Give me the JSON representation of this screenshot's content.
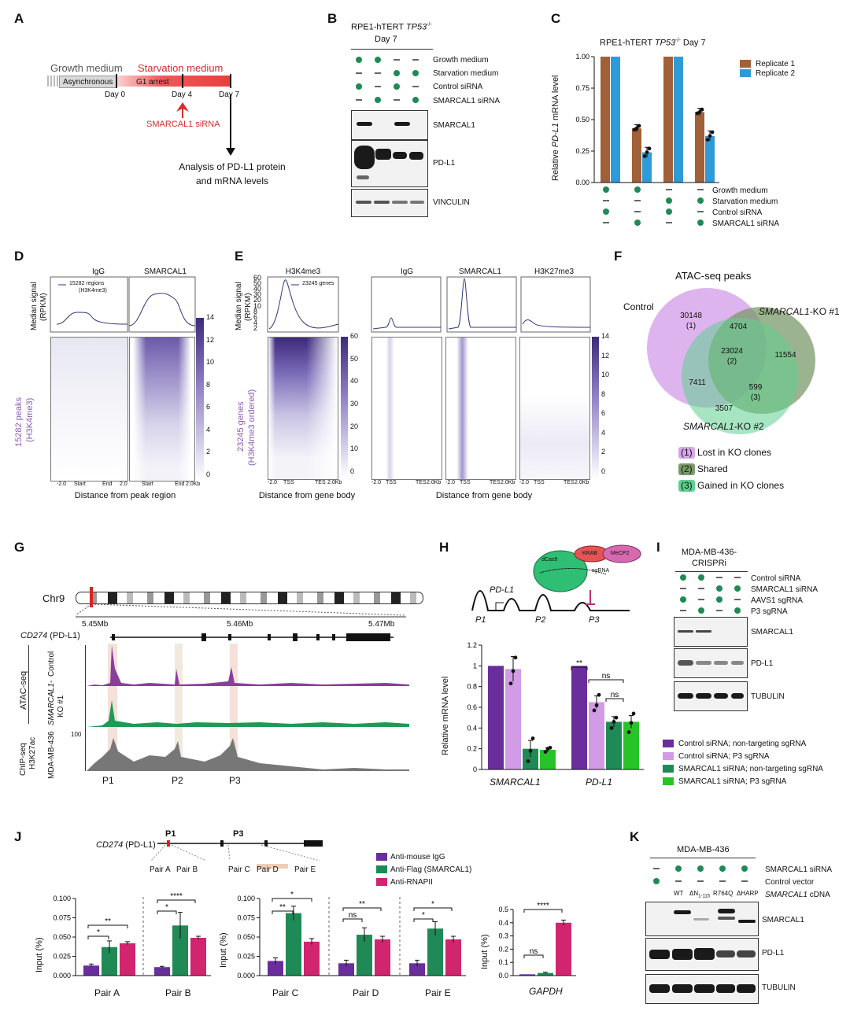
{
  "panels": {
    "A": "A",
    "B": "B",
    "C": "C",
    "D": "D",
    "E": "E",
    "F": "F",
    "G": "G",
    "H": "H",
    "I": "I",
    "J": "J",
    "K": "K"
  },
  "A": {
    "growth_medium": "Growth medium",
    "starvation_medium": "Starvation medium",
    "asynchronous": "Asynchronous",
    "g1_arrest": "G1 arrest",
    "day0": "Day 0",
    "day4": "Day 4",
    "day7": "Day 7",
    "sirna": "SMARCAL1 siRNA",
    "analysis1": "Analysis of PD-L1 protein",
    "analysis2": "and mRNA levels"
  },
  "B": {
    "title1": "RPE1-hTERT ",
    "title_italic": "TP53",
    "title_sup": "-/-",
    "title2": "Day 7",
    "rows": [
      "Growth medium",
      "Starvation medium",
      "Control siRNA",
      "SMARCAL1 siRNA"
    ],
    "blots": [
      "SMARCAL1",
      "PD-L1",
      "VINCULIN"
    ]
  },
  "C": {
    "title": "RPE1-hTERT ",
    "title_italic": "TP53",
    "title_sup": "-/-",
    "title_end": " Day 7",
    "ylabel_pre": "Relative ",
    "ylabel_italic": "PD-L1",
    "ylabel_post": " mRNA level",
    "yticks": [
      "1.00",
      "0.75",
      "0.50",
      "0.25",
      "0.00"
    ],
    "legend": [
      "Replicate 1",
      "Replicate 2"
    ],
    "rows": [
      "Growth medium",
      "Starvation medium",
      "Control siRNA",
      "SMARCAL1 siRNA"
    ],
    "colors": {
      "rep1": "#a0603a",
      "rep2": "#2f9bd6"
    }
  },
  "D": {
    "ylabel1": "Median signal",
    "ylabel2": "(RPKM)",
    "cols": [
      "IgG",
      "SMARCAL1"
    ],
    "legend1": "15282 regions",
    "legend2": "(H3K4me3)",
    "side1": "15282 peaks",
    "side2": "(H3K4me3)",
    "xticks": [
      "-2.0",
      "Start",
      "End",
      "2.0",
      "Start",
      "End",
      "2.0Kb"
    ],
    "cticks": [
      "14",
      "12",
      "10",
      "8",
      "6",
      "4",
      "2",
      "0"
    ],
    "xlabel": "Distance from peak region"
  },
  "E": {
    "ylabel1": "Median signal",
    "ylabel2": "(RPKM)",
    "yticks": [
      "60",
      "50",
      "40",
      "30",
      "20",
      "10",
      "8",
      "6",
      "4",
      "2"
    ],
    "cols": [
      "H3K4me3",
      "IgG",
      "SMARCAL1",
      "H3K27me3"
    ],
    "legend": "23245 genes",
    "side1": "23245 genes",
    "side2": "(H3K4me3 ordered)",
    "cticks1": [
      "60",
      "50",
      "40",
      "30",
      "20",
      "10",
      "0"
    ],
    "cticks2": [
      "14",
      "12",
      "10",
      "8",
      "6",
      "4",
      "2",
      "0"
    ],
    "xt1": [
      "-2.0",
      "TSS",
      "TES",
      "2.0Kb"
    ],
    "xt2": [
      "-2.0",
      "TSS",
      "TES",
      "2.0Kb"
    ],
    "xlabel1": "Distance from gene body",
    "xlabel2": "Distance from gene body"
  },
  "F": {
    "title": "ATAC-seq peaks",
    "control": "Control",
    "ko1_italic": "SMARCAL1",
    "ko1": "-KO #1",
    "ko2_italic": "SMARCAL1",
    "ko2": "-KO #2",
    "n30148": "30148",
    "n30148b": "(1)",
    "n4704": "4704",
    "n23024": "23024",
    "n23024b": "(2)",
    "n11554": "11554",
    "n7411": "7411",
    "n599": "599",
    "n599b": "(3)",
    "n3507": "3507",
    "legend": [
      {
        "tag": "(1)",
        "label": "Lost in KO clones"
      },
      {
        "tag": "(2)",
        "label": "Shared"
      },
      {
        "tag": "(3)",
        "label": "Gained in KO clones"
      }
    ]
  },
  "G": {
    "chr": "Chr9",
    "ticks": [
      "5.45Mb",
      "5.46Mb",
      "5.47Mb"
    ],
    "gene_italic": "CD274",
    "gene": " (PD-L1)",
    "atac": "ATAC-seq",
    "control": "Control",
    "ko_italic": "SMARCAL1-",
    "ko": "KO #1",
    "chip1": "ChIP-seq",
    "chip2": "H3K27ac",
    "mda": "MDA-MB-436",
    "yscale": "100",
    "peaks": [
      "P1",
      "P2",
      "P3"
    ]
  },
  "H": {
    "dcas9": "dCas9",
    "krab": "KRAB",
    "mecp2": "MeCP2",
    "sgrna": "sgRNA",
    "pdl1": "PD-L1",
    "p": [
      "P1",
      "P2",
      "P3"
    ],
    "ylabel": "Relative mRNA level",
    "yticks": [
      "1.2",
      "1",
      "0.8",
      "0.6",
      "0.4",
      "0.2",
      "0"
    ],
    "groups": [
      "SMARCAL1",
      "PD-L1"
    ],
    "sig": [
      "**",
      "ns",
      "ns"
    ],
    "legend": [
      "Control siRNA; non-targeting sgRNA",
      "Control siRNA; P3 sgRNA",
      "SMARCAL1 siRNA; non-targeting sgRNA",
      "SMARCAL1 siRNA; P3 sgRNA"
    ],
    "colors": [
      "#6a2d9c",
      "#d29be6",
      "#1f8a55",
      "#27c427"
    ]
  },
  "I": {
    "title1": "MDA-MB-436-",
    "title2": "CRISPRi",
    "rows": [
      "Control siRNA",
      "SMARCAL1 siRNA",
      "AAVS1 sgRNA",
      "P3 sgRNA"
    ],
    "blots": [
      "SMARCAL1",
      "PD-L1",
      "TUBULIN"
    ]
  },
  "J": {
    "gene_italic": "CD274",
    "gene": " (PD-L1)",
    "p1": "P1",
    "p3": "P3",
    "pairs": [
      "Pair A",
      "Pair B",
      "Pair C",
      "Pair D",
      "Pair E"
    ],
    "legend": [
      "Anti-mouse IgG",
      "Anti-Flag (SMARCAL1)",
      "Anti-RNAPII"
    ],
    "colors": [
      "#6a2d9c",
      "#1f8a55",
      "#d1256f"
    ],
    "ylabel": "Input (%)",
    "yt1": [
      "0.100",
      "0.075",
      "0.050",
      "0.025",
      "0.000"
    ],
    "yt2": [
      "0.100",
      "0.075",
      "0.050",
      "0.025",
      "0.000"
    ],
    "yt3": [
      "0.5",
      "0.4",
      "0.3",
      "0.2",
      "0.1",
      "0.0"
    ],
    "sigAB": [
      "**",
      "*",
      "****",
      "*"
    ],
    "sigC": [
      "*",
      "**"
    ],
    "sigD": [
      "**",
      "ns"
    ],
    "sigE": [
      "*",
      "*"
    ],
    "sigG": [
      "****",
      "ns"
    ],
    "gapdh": "GAPDH"
  },
  "K": {
    "title": "MDA-MB-436",
    "rows": [
      "SMARCAL1 siRNA",
      "Control vector"
    ],
    "cdna_italic": "SMARCAL1",
    "cdna": " cDNA",
    "lanes": [
      "WT",
      "ΔN",
      "1-115",
      "R764Q",
      "ΔHARP"
    ],
    "blots": [
      "SMARCAL1",
      "PD-L1",
      "TUBULIN"
    ]
  },
  "chart_data": [
    {
      "type": "bar",
      "title": "RPE1-hTERT TP53-/- Day 7",
      "ylabel": "Relative PD-L1 mRNA level",
      "ylim": [
        0,
        1
      ],
      "categories": [
        "Growth+Control",
        "Growth+SMARCAL1",
        "Starvation+Control",
        "Starvation+SMARCAL1"
      ],
      "series": [
        {
          "name": "Replicate 1",
          "values": [
            1.0,
            0.43,
            1.0,
            0.56
          ]
        },
        {
          "name": "Replicate 2",
          "values": [
            1.0,
            0.24,
            1.0,
            0.37
          ]
        }
      ]
    },
    {
      "type": "bar",
      "ylabel": "Relative mRNA level",
      "ylim": [
        0,
        1.2
      ],
      "categories": [
        "SMARCAL1",
        "PD-L1"
      ],
      "series": [
        {
          "name": "Control siRNA; non-targeting sgRNA",
          "values": [
            1.0,
            1.0
          ]
        },
        {
          "name": "Control siRNA; P3 sgRNA",
          "values": [
            0.97,
            0.65
          ]
        },
        {
          "name": "SMARCAL1 siRNA; non-targeting sgRNA",
          "values": [
            0.2,
            0.46
          ]
        },
        {
          "name": "SMARCAL1 siRNA; P3 sgRNA",
          "values": [
            0.19,
            0.46
          ]
        }
      ]
    },
    {
      "type": "bar",
      "ylabel": "Input (%)",
      "ylim": [
        0,
        0.1
      ],
      "categories": [
        "Pair A",
        "Pair B"
      ],
      "series": [
        {
          "name": "Anti-mouse IgG",
          "values": [
            0.013,
            0.011
          ]
        },
        {
          "name": "Anti-Flag (SMARCAL1)",
          "values": [
            0.037,
            0.065
          ]
        },
        {
          "name": "Anti-RNAPII",
          "values": [
            0.042,
            0.049
          ]
        }
      ]
    },
    {
      "type": "bar",
      "ylabel": "Input (%)",
      "ylim": [
        0,
        0.1
      ],
      "categories": [
        "Pair C",
        "Pair D",
        "Pair E"
      ],
      "series": [
        {
          "name": "Anti-mouse IgG",
          "values": [
            0.019,
            0.016,
            0.016
          ]
        },
        {
          "name": "Anti-Flag (SMARCAL1)",
          "values": [
            0.081,
            0.053,
            0.061
          ]
        },
        {
          "name": "Anti-RNAPII",
          "values": [
            0.044,
            0.047,
            0.047
          ]
        }
      ]
    },
    {
      "type": "bar",
      "ylabel": "Input (%)",
      "ylim": [
        0,
        0.5
      ],
      "categories": [
        "GAPDH"
      ],
      "series": [
        {
          "name": "Anti-mouse IgG",
          "values": [
            0.01
          ]
        },
        {
          "name": "Anti-Flag (SMARCAL1)",
          "values": [
            0.02
          ]
        },
        {
          "name": "Anti-RNAPII",
          "values": [
            0.4
          ]
        }
      ]
    }
  ]
}
